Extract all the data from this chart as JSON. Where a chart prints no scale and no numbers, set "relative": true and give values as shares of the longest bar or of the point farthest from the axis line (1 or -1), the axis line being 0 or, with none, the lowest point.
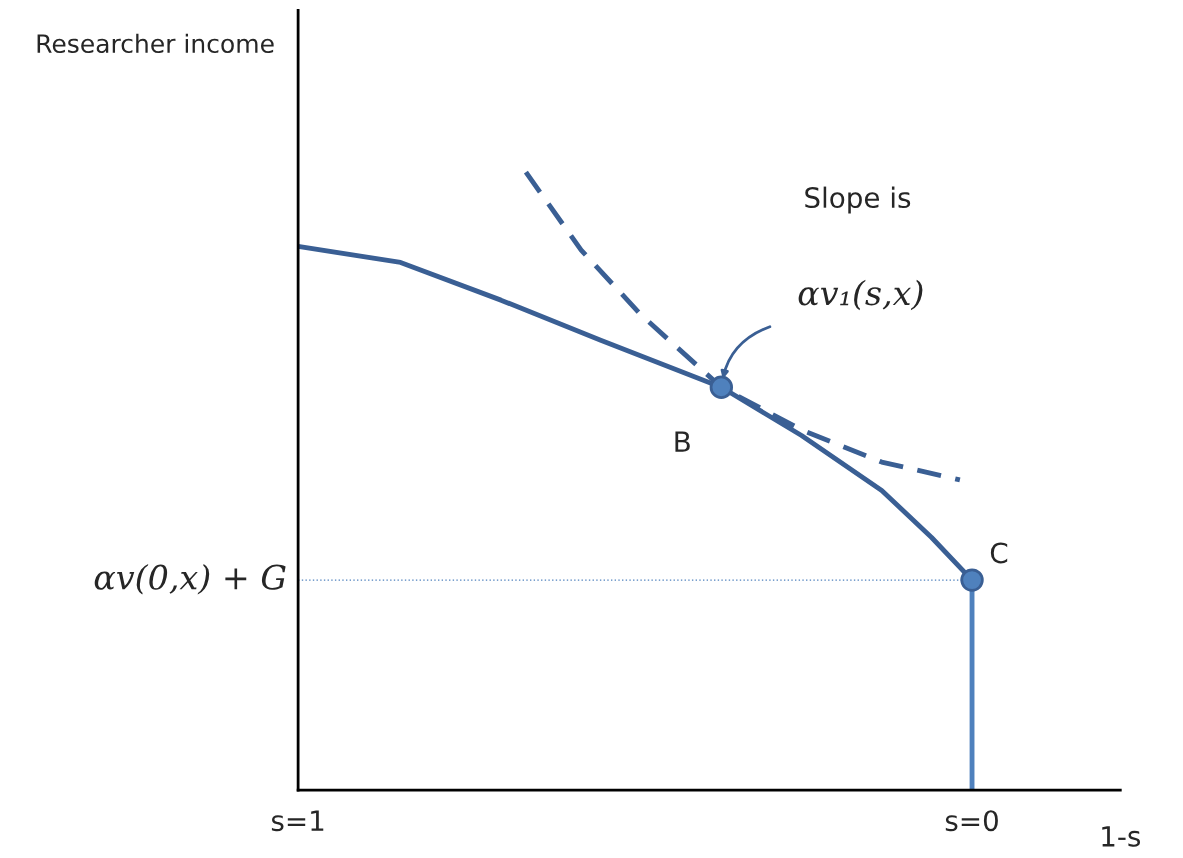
{
  "chart_data": {
    "type": "line",
    "relative": true,
    "ylabel": "Researcher income",
    "xlabel": "1-s",
    "xlim": [
      1,
      -0.22
    ],
    "xticks": [
      {
        "value": 1,
        "label": "s=1"
      },
      {
        "value": 0,
        "label": "s=0"
      }
    ],
    "tick_labels": "x",
    "grid": false,
    "legend": false,
    "series": [
      {
        "color": "#3a5f94",
        "line_style": "solid",
        "marker": "none",
        "x": [
          1,
          0.848,
          0.699,
          0.551,
          0.372,
          0.253,
          0.134,
          0.06,
          0
        ],
        "values": [
          0.88,
          0.854,
          0.793,
          0.728,
          0.652,
          0.574,
          0.485,
          0.409,
          0.34
        ]
      },
      {
        "color": "#3a5f94",
        "line_style": "dashed",
        "marker": "none",
        "x": [
          0.662,
          0.58,
          0.491,
          0.372,
          0.253,
          0.134,
          0.018
        ],
        "values": [
          1.0,
          0.874,
          0.769,
          0.652,
          0.583,
          0.531,
          0.502
        ]
      },
      {
        "color": "#4f81bd",
        "line_style": "solid",
        "marker": "none",
        "x": [
          0,
          0
        ],
        "values": [
          0,
          0.34
        ]
      },
      {
        "type": "scatter",
        "color": "#4f81bd",
        "marker": "circle",
        "x": [
          0.372,
          0
        ],
        "values": [
          0.652,
          0.34
        ]
      }
    ],
    "ref_lines": [
      {
        "axis": "y",
        "value": 0.34,
        "label": "αv(0,x) + G",
        "color": "#4f81bd",
        "line_style": "dotted"
      }
    ],
    "annotations": [
      "B",
      "C",
      "Slope is",
      "αv₁(s,x)"
    ]
  }
}
